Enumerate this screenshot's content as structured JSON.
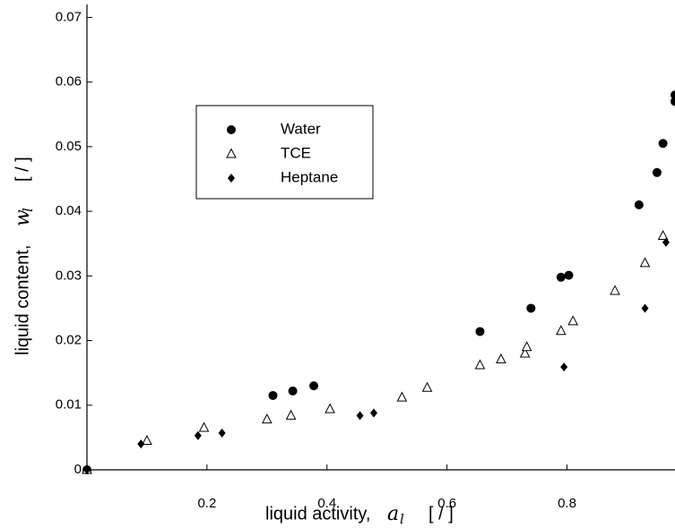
{
  "chart_data": {
    "type": "scatter",
    "x_label": {
      "text": "liquid activity,",
      "symbol": "a",
      "subscript": "l",
      "unit": "[ / ]"
    },
    "y_label": {
      "text": "liquid content,",
      "symbol": "w",
      "subscript": "l",
      "unit": "[ / ]"
    },
    "xlim": [
      0,
      0.98
    ],
    "ylim": [
      0,
      0.072
    ],
    "xticks": [
      0.2,
      0.4,
      0.6,
      0.8
    ],
    "yticks": [
      0,
      0.01,
      0.02,
      0.03,
      0.04,
      0.05,
      0.06,
      0.07
    ],
    "legend": "upper left",
    "series": [
      {
        "name": "Water",
        "marker": "circle",
        "color": "#000000",
        "x": [
          0,
          0.31,
          0.343,
          0.378,
          0.655,
          0.74,
          0.79,
          0.803,
          0.92,
          0.95,
          0.96,
          0.98,
          0.98
        ],
        "values": [
          0,
          0.0115,
          0.0122,
          0.013,
          0.0214,
          0.025,
          0.0298,
          0.0301,
          0.041,
          0.046,
          0.0505,
          0.057,
          0.058
        ]
      },
      {
        "name": "TCE",
        "marker": "triangle",
        "color": "#000000",
        "x": [
          0,
          0.1,
          0.195,
          0.3,
          0.34,
          0.405,
          0.525,
          0.567,
          0.655,
          0.69,
          0.73,
          0.733,
          0.79,
          0.81,
          0.88,
          0.93,
          0.96
        ],
        "values": [
          0,
          0.0045,
          0.0065,
          0.0078,
          0.0084,
          0.0094,
          0.0112,
          0.0127,
          0.0162,
          0.0171,
          0.018,
          0.019,
          0.0215,
          0.023,
          0.0277,
          0.032,
          0.0362
        ]
      },
      {
        "name": "Heptane",
        "marker": "diamond",
        "color": "#000000",
        "x": [
          0,
          0.09,
          0.185,
          0.225,
          0.455,
          0.478,
          0.795,
          0.93,
          0.965
        ],
        "values": [
          0,
          0.004,
          0.0053,
          0.0057,
          0.0084,
          0.0088,
          0.0159,
          0.025,
          0.0352
        ]
      }
    ]
  }
}
